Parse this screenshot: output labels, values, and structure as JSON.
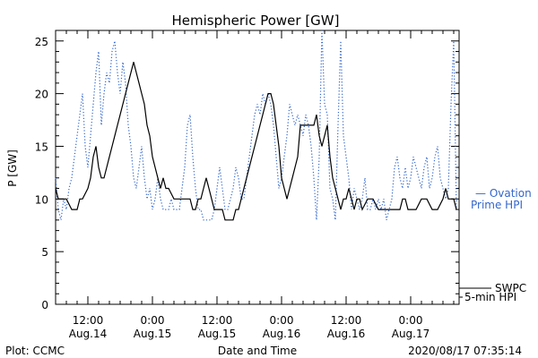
{
  "chart_data": {
    "type": "line",
    "title": "Hemispheric Power [GW]",
    "ylabel": "P [GW]",
    "xlabel": "Date and Time",
    "ylim": [
      0,
      26
    ],
    "yticks": [
      0,
      5,
      10,
      15,
      20,
      25
    ],
    "xlim": [
      6,
      81
    ],
    "xticks": [
      {
        "x": 12,
        "time": "12:00",
        "date": "Aug.14"
      },
      {
        "x": 24,
        "time": "0:00",
        "date": "Aug.15"
      },
      {
        "x": 36,
        "time": "12:00",
        "date": "Aug.15"
      },
      {
        "x": 48,
        "time": "0:00",
        "date": "Aug.16"
      },
      {
        "x": 60,
        "time": "12:00",
        "date": "Aug.16"
      },
      {
        "x": 72,
        "time": "0:00",
        "date": "Aug.17"
      }
    ],
    "series": [
      {
        "name_line1": "SWPC",
        "name_line2": "5-min HPI",
        "style": "solid",
        "color": "#000000",
        "points": [
          [
            6,
            11
          ],
          [
            6.5,
            10
          ],
          [
            7,
            10
          ],
          [
            8,
            10
          ],
          [
            9,
            9
          ],
          [
            10,
            9
          ],
          [
            10.5,
            10
          ],
          [
            11,
            10
          ],
          [
            12,
            11
          ],
          [
            12.5,
            12
          ],
          [
            13,
            14
          ],
          [
            13.5,
            15
          ],
          [
            14,
            13
          ],
          [
            14.5,
            12
          ],
          [
            15,
            12
          ],
          [
            15.5,
            13
          ],
          [
            16,
            14
          ],
          [
            16.5,
            15
          ],
          [
            17,
            16
          ],
          [
            17.5,
            17
          ],
          [
            18,
            18
          ],
          [
            18.5,
            19
          ],
          [
            19,
            20
          ],
          [
            19.5,
            21
          ],
          [
            20,
            22
          ],
          [
            20.5,
            23
          ],
          [
            21,
            22
          ],
          [
            21.5,
            21
          ],
          [
            22,
            20
          ],
          [
            22.5,
            19
          ],
          [
            23,
            17
          ],
          [
            23.5,
            16
          ],
          [
            24,
            14
          ],
          [
            24.5,
            13
          ],
          [
            25,
            12
          ],
          [
            25.5,
            11
          ],
          [
            26,
            12
          ],
          [
            26.5,
            11
          ],
          [
            27,
            11
          ],
          [
            28,
            10
          ],
          [
            29,
            10
          ],
          [
            30,
            10
          ],
          [
            31,
            10
          ],
          [
            31.5,
            9
          ],
          [
            32,
            9
          ],
          [
            32.5,
            10
          ],
          [
            33,
            10
          ],
          [
            33.5,
            11
          ],
          [
            34,
            12
          ],
          [
            34.5,
            11
          ],
          [
            35,
            10
          ],
          [
            35.5,
            9
          ],
          [
            36,
            9
          ],
          [
            37,
            9
          ],
          [
            37.5,
            8
          ],
          [
            38,
            8
          ],
          [
            39,
            8
          ],
          [
            39.5,
            9
          ],
          [
            40,
            9
          ],
          [
            40.5,
            10
          ],
          [
            41,
            11
          ],
          [
            41.5,
            12
          ],
          [
            42,
            13
          ],
          [
            42.5,
            14
          ],
          [
            43,
            15
          ],
          [
            43.5,
            16
          ],
          [
            44,
            17
          ],
          [
            44.5,
            18
          ],
          [
            45,
            19
          ],
          [
            45.5,
            20
          ],
          [
            46,
            20
          ],
          [
            46.5,
            19
          ],
          [
            47,
            17
          ],
          [
            47.5,
            15
          ],
          [
            48,
            12
          ],
          [
            48.5,
            11
          ],
          [
            49,
            10
          ],
          [
            49.5,
            11
          ],
          [
            50,
            12
          ],
          [
            50.5,
            13
          ],
          [
            51,
            14
          ],
          [
            51.5,
            17
          ],
          [
            52,
            17
          ],
          [
            53,
            17
          ],
          [
            54,
            17
          ],
          [
            54.5,
            18
          ],
          [
            55,
            16
          ],
          [
            55.5,
            15
          ],
          [
            56,
            16
          ],
          [
            56.5,
            17
          ],
          [
            57,
            14
          ],
          [
            57.5,
            12
          ],
          [
            58,
            11
          ],
          [
            58.5,
            10
          ],
          [
            59,
            9
          ],
          [
            59.5,
            10
          ],
          [
            60,
            10
          ],
          [
            60.5,
            11
          ],
          [
            61,
            10
          ],
          [
            61.5,
            9
          ],
          [
            62,
            10
          ],
          [
            62.5,
            10
          ],
          [
            63,
            9
          ],
          [
            64,
            10
          ],
          [
            65,
            10
          ],
          [
            66,
            9
          ],
          [
            67,
            9
          ],
          [
            68,
            9
          ],
          [
            69,
            9
          ],
          [
            70,
            9
          ],
          [
            70.5,
            10
          ],
          [
            71,
            10
          ],
          [
            71.5,
            9
          ],
          [
            72,
            9
          ],
          [
            73,
            9
          ],
          [
            74,
            10
          ],
          [
            75,
            10
          ],
          [
            76,
            9
          ],
          [
            77,
            9
          ],
          [
            78,
            10
          ],
          [
            78.5,
            11
          ],
          [
            79,
            10
          ],
          [
            80,
            10
          ],
          [
            80.5,
            9
          ]
        ]
      },
      {
        "name_line1": "— Ovation",
        "name_line2": "Prime HPI",
        "style": "dotted",
        "color": "#3366cc",
        "points": [
          [
            6,
            12
          ],
          [
            6.5,
            9
          ],
          [
            7,
            8
          ],
          [
            7.5,
            10
          ],
          [
            8,
            9
          ],
          [
            8.5,
            11
          ],
          [
            9,
            12
          ],
          [
            9.5,
            14
          ],
          [
            10,
            16
          ],
          [
            10.5,
            18
          ],
          [
            11,
            20
          ],
          [
            11.5,
            15
          ],
          [
            12,
            13
          ],
          [
            12.5,
            16
          ],
          [
            13,
            19
          ],
          [
            13.5,
            22
          ],
          [
            14,
            24
          ],
          [
            14.5,
            17
          ],
          [
            15,
            20
          ],
          [
            15.5,
            22
          ],
          [
            16,
            21
          ],
          [
            16.5,
            24
          ],
          [
            17,
            25
          ],
          [
            17.5,
            22
          ],
          [
            18,
            20
          ],
          [
            18.5,
            23
          ],
          [
            19,
            21
          ],
          [
            19.5,
            17
          ],
          [
            20,
            15
          ],
          [
            20.5,
            12
          ],
          [
            21,
            11
          ],
          [
            21.5,
            13
          ],
          [
            22,
            15
          ],
          [
            22.5,
            12
          ],
          [
            23,
            10
          ],
          [
            23.5,
            11
          ],
          [
            24,
            9
          ],
          [
            24.5,
            10
          ],
          [
            25,
            12
          ],
          [
            25.5,
            10
          ],
          [
            26,
            9
          ],
          [
            27,
            9
          ],
          [
            27.5,
            10
          ],
          [
            28,
            9
          ],
          [
            29,
            9
          ],
          [
            29.5,
            11
          ],
          [
            30,
            13
          ],
          [
            30.5,
            17
          ],
          [
            31,
            18
          ],
          [
            31.5,
            14
          ],
          [
            32,
            11
          ],
          [
            32.5,
            9
          ],
          [
            33,
            9
          ],
          [
            33.5,
            8
          ],
          [
            34,
            8
          ],
          [
            35,
            8
          ],
          [
            35.5,
            9
          ],
          [
            36,
            11
          ],
          [
            36.5,
            13
          ],
          [
            37,
            11
          ],
          [
            37.5,
            9
          ],
          [
            38,
            9
          ],
          [
            38.5,
            10
          ],
          [
            39,
            11
          ],
          [
            39.5,
            13
          ],
          [
            40,
            12
          ],
          [
            40.5,
            10
          ],
          [
            41,
            10
          ],
          [
            41.5,
            12
          ],
          [
            42,
            14
          ],
          [
            42.5,
            16
          ],
          [
            43,
            18
          ],
          [
            43.5,
            19
          ],
          [
            44,
            18
          ],
          [
            44.5,
            20
          ],
          [
            45,
            19
          ],
          [
            45.5,
            20
          ],
          [
            46,
            19
          ],
          [
            46.5,
            17
          ],
          [
            47,
            14
          ],
          [
            47.5,
            11
          ],
          [
            48,
            12
          ],
          [
            48.5,
            14
          ],
          [
            49,
            16
          ],
          [
            49.5,
            19
          ],
          [
            50,
            18
          ],
          [
            50.5,
            17
          ],
          [
            51,
            18
          ],
          [
            51.5,
            17
          ],
          [
            52,
            16
          ],
          [
            52.5,
            18
          ],
          [
            53,
            17
          ],
          [
            53.5,
            15
          ],
          [
            54,
            12
          ],
          [
            54.5,
            8
          ],
          [
            55,
            14
          ],
          [
            55.5,
            26
          ],
          [
            56,
            19
          ],
          [
            56.5,
            18
          ],
          [
            57,
            11
          ],
          [
            57.5,
            10
          ],
          [
            58,
            8
          ],
          [
            58.5,
            17
          ],
          [
            59,
            25
          ],
          [
            59.5,
            16
          ],
          [
            60,
            14
          ],
          [
            60.5,
            12
          ],
          [
            61,
            9
          ],
          [
            61.5,
            11
          ],
          [
            62,
            10
          ],
          [
            62.5,
            9
          ],
          [
            63,
            10
          ],
          [
            63.5,
            12
          ],
          [
            64,
            9
          ],
          [
            64.5,
            9
          ],
          [
            65,
            10
          ],
          [
            65.5,
            9
          ],
          [
            66,
            10
          ],
          [
            66.5,
            9
          ],
          [
            67,
            10
          ],
          [
            67.5,
            8
          ],
          [
            68,
            9
          ],
          [
            68.5,
            10
          ],
          [
            69,
            13
          ],
          [
            69.5,
            14
          ],
          [
            70,
            12
          ],
          [
            70.5,
            11
          ],
          [
            71,
            13
          ],
          [
            71.5,
            11
          ],
          [
            72,
            12
          ],
          [
            72.5,
            14
          ],
          [
            73,
            13
          ],
          [
            73.5,
            12
          ],
          [
            74,
            11
          ],
          [
            74.5,
            13
          ],
          [
            75,
            14
          ],
          [
            75.5,
            11
          ],
          [
            76,
            12
          ],
          [
            76.5,
            14
          ],
          [
            77,
            15
          ],
          [
            77.5,
            12
          ],
          [
            78,
            11
          ],
          [
            78.5,
            10
          ],
          [
            79,
            11
          ],
          [
            79.5,
            19
          ],
          [
            80,
            25
          ],
          [
            80.5,
            9
          ]
        ]
      }
    ]
  },
  "footer": {
    "plot_credit": "Plot: CCMC",
    "timestamp": "2020/08/17 07:35:14"
  }
}
